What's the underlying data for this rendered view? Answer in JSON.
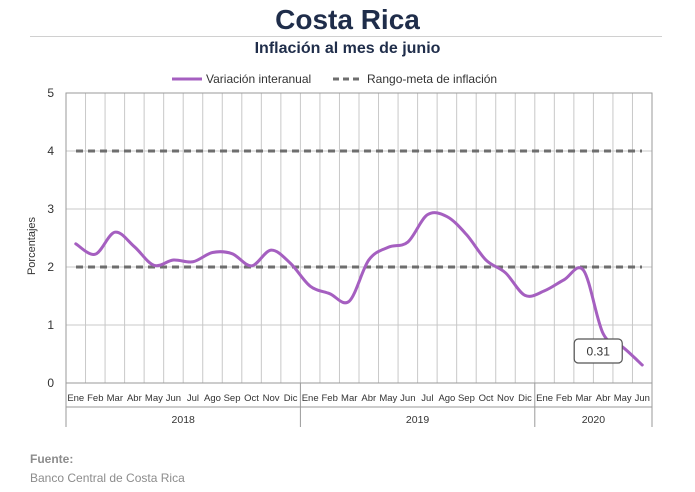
{
  "header": {
    "title": "Costa Rica",
    "subtitle": "Inflación al mes de junio"
  },
  "footer": {
    "source_label": "Fuente:",
    "source_text": "Banco Central de Costa Rica"
  },
  "colors": {
    "series_line": "#a55fc0",
    "target_line": "#6e6e6e",
    "grid": "#c8c8c8",
    "axis_text": "#333333"
  },
  "chart_data": {
    "type": "line",
    "ylabel": "Porcentajes",
    "ylim": [
      0,
      5
    ],
    "yticks": [
      0,
      1,
      2,
      3,
      4,
      5
    ],
    "grid": true,
    "legend_position": "top",
    "months": [
      "Ene",
      "Feb",
      "Mar",
      "Abr",
      "May",
      "Jun",
      "Jul",
      "Ago",
      "Sep",
      "Oct",
      "Nov",
      "Dic",
      "Ene",
      "Feb",
      "Mar",
      "Abr",
      "May",
      "Jun",
      "Jul",
      "Ago",
      "Sep",
      "Oct",
      "Nov",
      "Dic",
      "Ene",
      "Feb",
      "Mar",
      "Abr",
      "May",
      "Jun"
    ],
    "years": [
      {
        "label": "2018",
        "months": 12
      },
      {
        "label": "2019",
        "months": 12
      },
      {
        "label": "2020",
        "months": 6
      }
    ],
    "series": [
      {
        "name": "Variación interanual",
        "style": "solid",
        "values": [
          2.4,
          2.22,
          2.6,
          2.35,
          2.03,
          2.12,
          2.09,
          2.25,
          2.23,
          2.02,
          2.29,
          2.06,
          1.67,
          1.54,
          1.41,
          2.12,
          2.34,
          2.43,
          2.9,
          2.87,
          2.56,
          2.12,
          1.9,
          1.51,
          1.59,
          1.78,
          1.94,
          0.85,
          0.62,
          0.31
        ]
      },
      {
        "name": "Rango-meta de inflación",
        "style": "dashed",
        "bands": [
          2,
          4
        ]
      }
    ],
    "annotation": {
      "label": "0.31",
      "value": 0.31
    }
  }
}
